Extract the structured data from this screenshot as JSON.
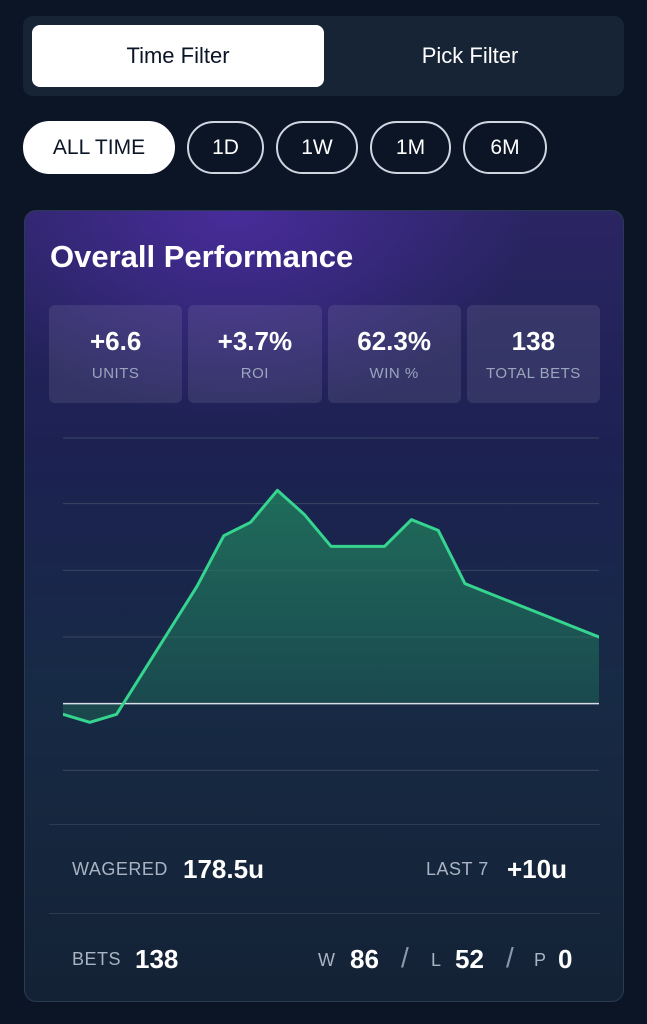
{
  "filter_tabs": {
    "time": "Time Filter",
    "pick": "Pick Filter"
  },
  "time_ranges": [
    "ALL TIME",
    "1D",
    "1W",
    "1M",
    "6M"
  ],
  "card": {
    "title": "Overall Performance",
    "stats": [
      {
        "value": "+6.6",
        "label": "UNITS"
      },
      {
        "value": "+3.7%",
        "label": "ROI"
      },
      {
        "value": "62.3%",
        "label": "WIN %"
      },
      {
        "value": "138",
        "label": "TOTAL BETS"
      }
    ]
  },
  "chart_data": {
    "type": "area",
    "series": [
      {
        "values": [
          -0.4,
          -0.7,
          -0.4,
          1.2,
          2.8,
          4.4,
          6.3,
          6.8,
          8.0,
          7.1,
          5.9,
          5.9,
          5.9,
          6.9,
          6.5,
          4.5,
          4.1,
          3.7,
          3.3,
          2.9,
          2.5
        ]
      }
    ],
    "ylim": [
      -5,
      10
    ],
    "baseline": 0,
    "grid": true,
    "colors": {
      "line": "#35d48f",
      "fill": "#1f7a5c",
      "baseline": "#d8dde6",
      "grid": "#3a4660"
    }
  },
  "footer": {
    "wagered_label": "WAGERED",
    "wagered_value": "178.5u",
    "last7_label": "LAST 7",
    "last7_value": "+10u",
    "bets_label": "BETS",
    "bets_value": "138",
    "w_label": "W",
    "w_value": "86",
    "l_label": "L",
    "l_value": "52",
    "p_label": "P",
    "p_value": "0",
    "separator": "/"
  }
}
